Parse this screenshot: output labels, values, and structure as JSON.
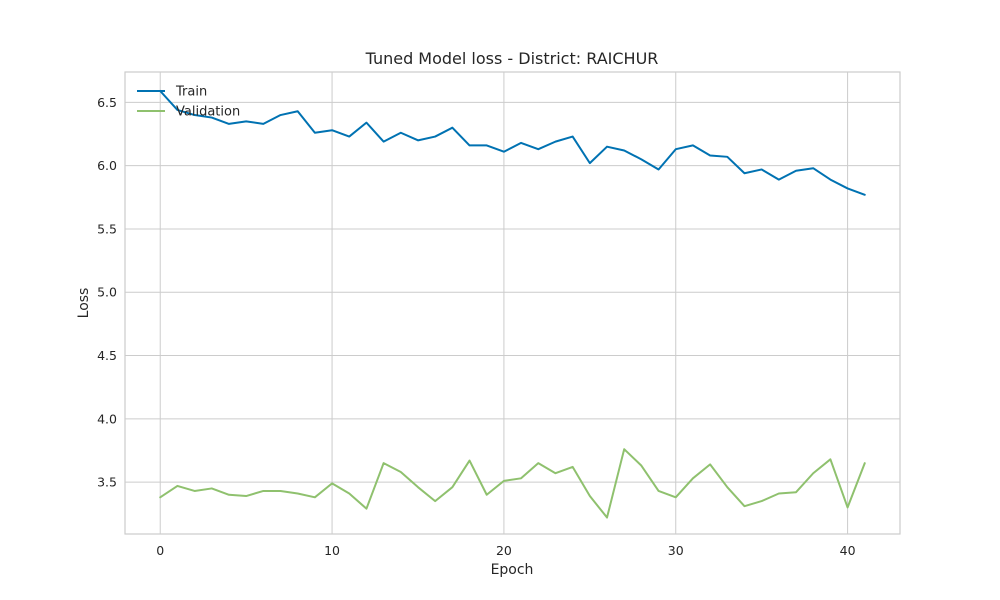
{
  "chart_data": {
    "type": "line",
    "title": "Tuned Model loss - District: RAICHUR",
    "xlabel": "Epoch",
    "ylabel": "Loss",
    "xlim": [
      -2.05,
      43.05
    ],
    "ylim": [
      3.09,
      6.74
    ],
    "xticks": [
      0,
      10,
      20,
      30,
      40
    ],
    "yticks": [
      3.5,
      4.0,
      4.5,
      5.0,
      5.5,
      6.0,
      6.5
    ],
    "xtick_labels": [
      "0",
      "10",
      "20",
      "30",
      "40"
    ],
    "ytick_labels": [
      "3.5",
      "4.0",
      "4.5",
      "5.0",
      "5.5",
      "6.0",
      "6.5"
    ],
    "grid": true,
    "legend_position": "top-left",
    "x": [
      0,
      1,
      2,
      3,
      4,
      5,
      6,
      7,
      8,
      9,
      10,
      11,
      12,
      13,
      14,
      15,
      16,
      17,
      18,
      19,
      20,
      21,
      22,
      23,
      24,
      25,
      26,
      27,
      28,
      29,
      30,
      31,
      32,
      33,
      34,
      35,
      36,
      37,
      38,
      39,
      40,
      41
    ],
    "series": [
      {
        "name": "Train",
        "color": "#0072b2",
        "values": [
          6.59,
          6.44,
          6.4,
          6.38,
          6.33,
          6.35,
          6.33,
          6.4,
          6.43,
          6.26,
          6.28,
          6.23,
          6.34,
          6.19,
          6.26,
          6.2,
          6.23,
          6.3,
          6.16,
          6.16,
          6.11,
          6.18,
          6.13,
          6.19,
          6.23,
          6.02,
          6.15,
          6.12,
          6.05,
          5.97,
          6.13,
          6.16,
          6.08,
          6.07,
          5.94,
          5.97,
          5.89,
          5.96,
          5.98,
          5.89,
          5.82,
          5.77
        ]
      },
      {
        "name": "Validation",
        "color": "#8fc16e",
        "values": [
          3.38,
          3.47,
          3.43,
          3.45,
          3.4,
          3.39,
          3.43,
          3.43,
          3.41,
          3.38,
          3.49,
          3.41,
          3.29,
          3.65,
          3.58,
          3.46,
          3.35,
          3.46,
          3.67,
          3.4,
          3.51,
          3.53,
          3.65,
          3.57,
          3.62,
          3.39,
          3.22,
          3.76,
          3.63,
          3.43,
          3.38,
          3.53,
          3.64,
          3.46,
          3.31,
          3.35,
          3.41,
          3.42,
          3.57,
          3.68,
          3.3,
          3.65
        ]
      }
    ]
  }
}
